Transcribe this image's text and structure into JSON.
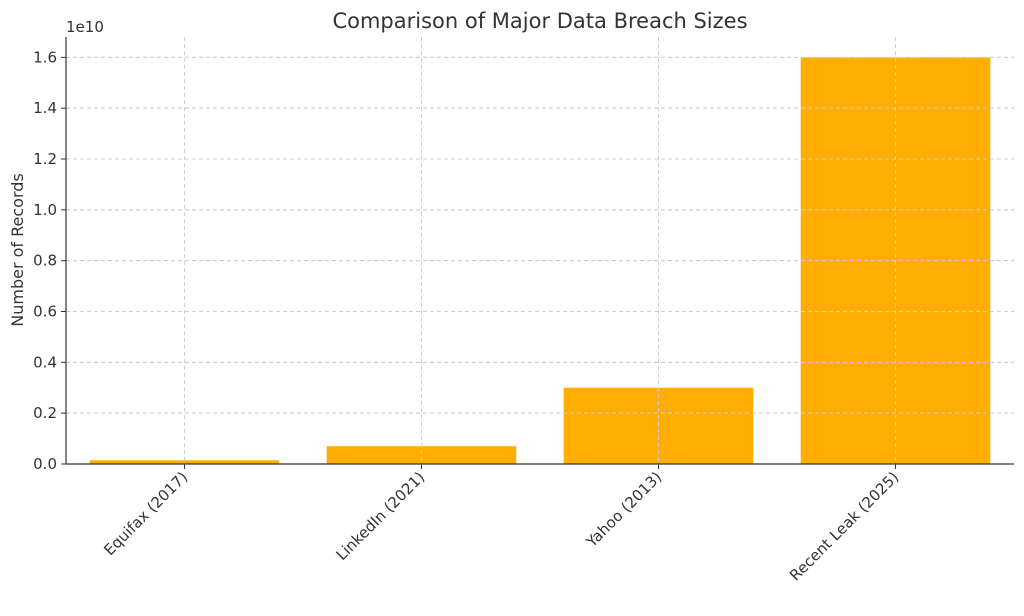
{
  "chart_data": {
    "type": "bar",
    "title": "Comparison of Major Data Breach Sizes",
    "xlabel": "",
    "ylabel": "Number of Records",
    "y_offset_label": "1e10",
    "y_scale": 10000000000,
    "categories": [
      "Equifax (2017)",
      "LinkedIn (2021)",
      "Yahoo (2013)",
      "Recent Leak (2025)"
    ],
    "values": [
      147000000,
      700000000,
      3000000000,
      16000000000
    ],
    "ylim": [
      0,
      16800000000
    ],
    "yticks": [
      0,
      2000000000,
      4000000000,
      6000000000,
      8000000000,
      10000000000,
      12000000000,
      14000000000,
      16000000000
    ],
    "ytick_labels": [
      "0.0",
      "0.2",
      "0.4",
      "0.6",
      "0.8",
      "1.0",
      "1.2",
      "1.4",
      "1.6"
    ],
    "bar_color": "#ffad00",
    "grid": true,
    "legend": "none"
  }
}
